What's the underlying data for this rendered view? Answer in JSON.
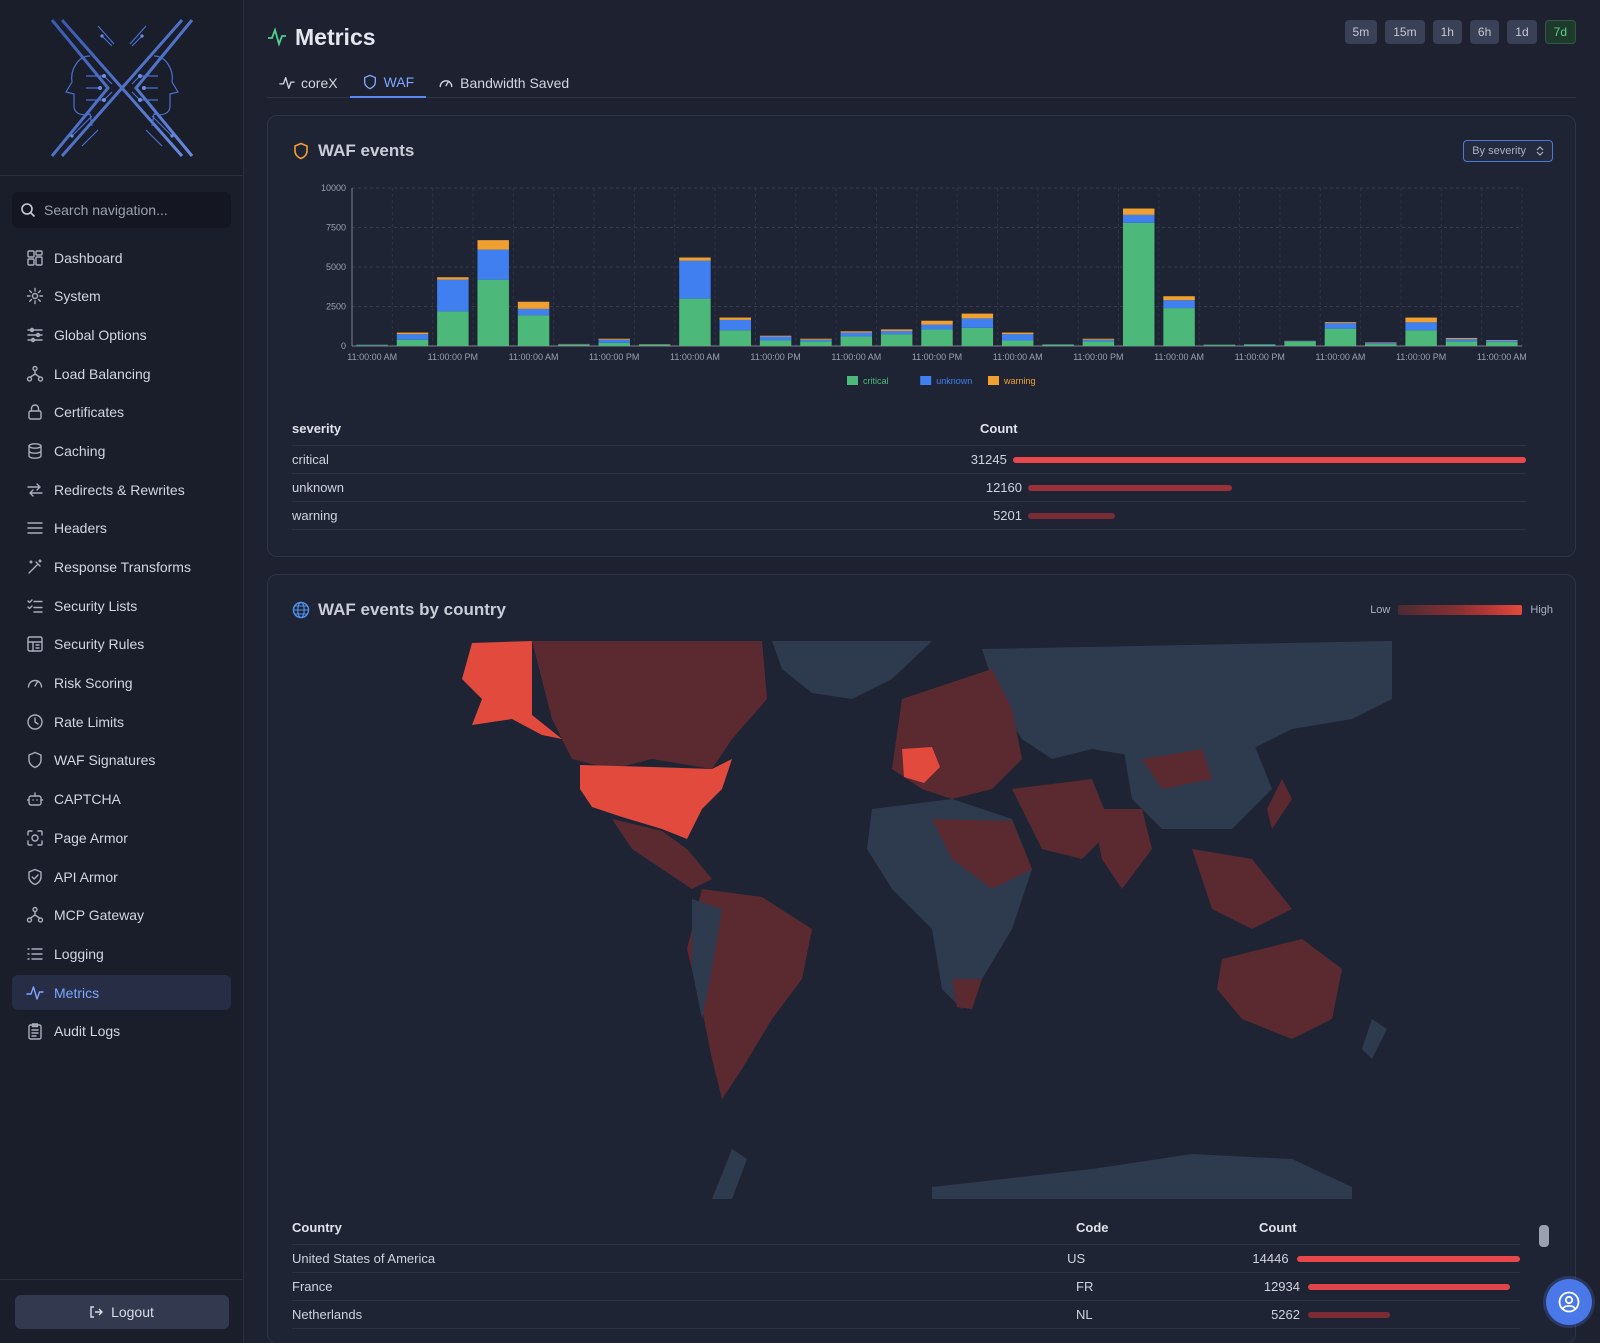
{
  "sidebar": {
    "search_placeholder": "Search navigation...",
    "items": [
      {
        "label": "Dashboard",
        "icon": "dashboard-icon"
      },
      {
        "label": "System",
        "icon": "gear-icon"
      },
      {
        "label": "Global Options",
        "icon": "sliders-icon"
      },
      {
        "label": "Load Balancing",
        "icon": "network-icon"
      },
      {
        "label": "Certificates",
        "icon": "lock-icon"
      },
      {
        "label": "Caching",
        "icon": "database-icon"
      },
      {
        "label": "Redirects & Rewrites",
        "icon": "arrows-icon"
      },
      {
        "label": "Headers",
        "icon": "lines-icon"
      },
      {
        "label": "Response Transforms",
        "icon": "wand-icon"
      },
      {
        "label": "Security Lists",
        "icon": "checklist-icon"
      },
      {
        "label": "Security Rules",
        "icon": "rules-icon"
      },
      {
        "label": "Risk Scoring",
        "icon": "gauge-icon"
      },
      {
        "label": "Rate Limits",
        "icon": "clock-icon"
      },
      {
        "label": "WAF Signatures",
        "icon": "shield-icon"
      },
      {
        "label": "CAPTCHA",
        "icon": "bot-icon"
      },
      {
        "label": "Page Armor",
        "icon": "scan-icon"
      },
      {
        "label": "API Armor",
        "icon": "shield-check-icon"
      },
      {
        "label": "MCP Gateway",
        "icon": "network-icon"
      },
      {
        "label": "Logging",
        "icon": "list-icon"
      },
      {
        "label": "Metrics",
        "icon": "activity-icon",
        "active": true
      },
      {
        "label": "Audit Logs",
        "icon": "clipboard-icon"
      }
    ],
    "logout_label": "Logout"
  },
  "header": {
    "title": "Metrics",
    "ranges": [
      "5m",
      "15m",
      "1h",
      "6h",
      "1d",
      "7d"
    ],
    "active_range": "7d"
  },
  "tabs": [
    {
      "label": "coreX",
      "icon": "activity-icon"
    },
    {
      "label": "WAF",
      "icon": "shield-icon",
      "active": true
    },
    {
      "label": "Bandwidth Saved",
      "icon": "gauge-icon"
    }
  ],
  "waf_events": {
    "title": "WAF events",
    "group_select": "By severity",
    "table_headers": [
      "severity",
      "Count"
    ],
    "rows": [
      {
        "name": "critical",
        "count": 31245
      },
      {
        "name": "unknown",
        "count": 12160
      },
      {
        "name": "warning",
        "count": 5201
      }
    ]
  },
  "chart_data": {
    "type": "bar",
    "stacked": true,
    "categories": [
      "11:00:00 AM",
      "",
      "11:00:00 PM",
      "",
      "11:00:00 AM",
      "",
      "11:00:00 PM",
      "",
      "11:00:00 AM",
      "",
      "11:00:00 PM",
      "",
      "11:00:00 AM",
      "",
      "11:00:00 PM",
      "",
      "11:00:00 AM",
      "",
      "11:00:00 PM",
      "",
      "11:00:00 AM",
      "",
      "11:00:00 PM",
      "",
      "11:00:00 AM",
      "",
      "11:00:00 PM",
      "",
      "11:00:00 AM"
    ],
    "series": [
      {
        "name": "critical",
        "color": "#4cb87a",
        "values": [
          50,
          400,
          2200,
          4200,
          1950,
          80,
          200,
          80,
          3000,
          1000,
          350,
          300,
          600,
          750,
          1050,
          1150,
          350,
          80,
          300,
          7800,
          2400,
          60,
          80,
          300,
          1100,
          120,
          1000,
          300,
          250
        ]
      },
      {
        "name": "unknown",
        "color": "#3f7ff0",
        "values": [
          20,
          350,
          2000,
          1900,
          400,
          30,
          200,
          20,
          2400,
          650,
          250,
          100,
          250,
          200,
          300,
          600,
          400,
          20,
          100,
          500,
          500,
          20,
          30,
          20,
          350,
          80,
          500,
          150,
          100
        ]
      },
      {
        "name": "warning",
        "color": "#f0a030",
        "values": [
          10,
          100,
          150,
          600,
          450,
          20,
          60,
          20,
          200,
          150,
          50,
          60,
          80,
          100,
          250,
          300,
          100,
          10,
          60,
          400,
          250,
          10,
          10,
          10,
          60,
          30,
          300,
          60,
          30
        ]
      }
    ],
    "ylim": [
      0,
      10000
    ],
    "yticks": [
      0,
      2500,
      5000,
      7500,
      10000
    ],
    "legend_position": "bottom"
  },
  "country_events": {
    "title": "WAF events by country",
    "legend_low": "Low",
    "legend_high": "High",
    "table_headers": [
      "Country",
      "Code",
      "Count"
    ],
    "rows": [
      {
        "country": "United States of America",
        "code": "US",
        "count": 14446
      },
      {
        "country": "France",
        "code": "FR",
        "count": 12934
      },
      {
        "country": "Netherlands",
        "code": "NL",
        "count": 5262
      }
    ]
  },
  "colors": {
    "accent": "#7fa7ff",
    "bar_high": "#e8474c",
    "map_high": "#e24a3d",
    "map_mid": "#5a2a30",
    "map_none": "#2e3a4e"
  }
}
